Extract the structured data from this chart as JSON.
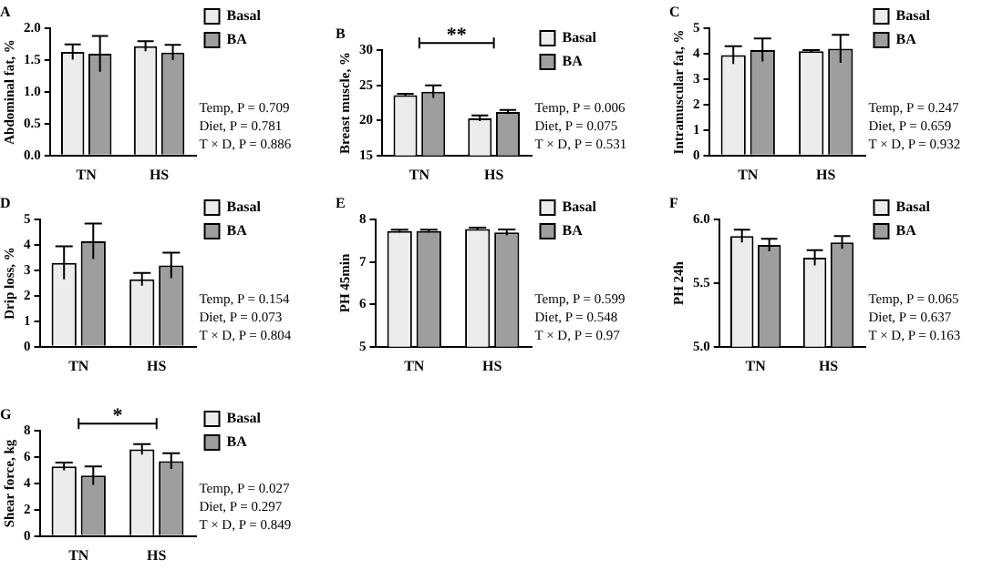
{
  "chart_data": [
    {
      "type": "bar",
      "title": "A",
      "ylabel": "Abdominal fat, %",
      "categories": [
        "TN",
        "HS"
      ],
      "legend": "right",
      "ylim": [
        0,
        2
      ],
      "yticks": [
        {
          "value": 0,
          "label": "0.0"
        },
        {
          "value": 0.5,
          "label": "0.5"
        },
        {
          "value": 1,
          "label": "1.0"
        },
        {
          "value": 1.5,
          "label": "1.5"
        },
        {
          "value": 2,
          "label": "2.0"
        }
      ],
      "series": [
        {
          "name": "Basal",
          "color": "#ececec",
          "values": [
            1.63,
            1.72
          ],
          "errors": [
            0.12,
            0.08
          ]
        },
        {
          "name": "BA",
          "color": "#9e9e9e",
          "values": [
            1.6,
            1.62
          ],
          "errors": [
            0.28,
            0.12
          ]
        }
      ],
      "annotations": [
        "Temp, P = 0.709",
        "Diet, P = 0.781",
        "T × D, P = 0.886"
      ]
    },
    {
      "type": "bar",
      "title": "B",
      "ylabel": "Breast muscle, %",
      "categories": [
        "TN",
        "HS"
      ],
      "legend": "right",
      "ylim": [
        15,
        30
      ],
      "yticks": [
        15,
        20,
        25,
        30
      ],
      "series": [
        {
          "name": "Basal",
          "color": "#ececec",
          "values": [
            23.6,
            20.3
          ],
          "errors": [
            0.2,
            0.4
          ]
        },
        {
          "name": "BA",
          "color": "#9e9e9e",
          "values": [
            24.1,
            21.2
          ],
          "errors": [
            0.9,
            0.3
          ]
        }
      ],
      "annotations": [
        "**",
        "Temp, P = 0.006",
        "Diet, P = 0.075",
        "T × D, P = 0.531"
      ]
    },
    {
      "type": "bar",
      "title": "C",
      "ylabel": "Intramuscular fat, %",
      "categories": [
        "TN",
        "HS"
      ],
      "legend": "right",
      "ylim": [
        0,
        5
      ],
      "yticks": [
        0,
        1,
        2,
        3,
        4,
        5
      ],
      "series": [
        {
          "name": "Basal",
          "color": "#ececec",
          "values": [
            3.95,
            4.1
          ],
          "errors": [
            0.35,
            0.05
          ]
        },
        {
          "name": "BA",
          "color": "#9e9e9e",
          "values": [
            4.15,
            4.2
          ],
          "errors": [
            0.45,
            0.55
          ]
        }
      ],
      "annotations": [
        "Temp, P = 0.247",
        "Diet, P = 0.659",
        "T × D, P = 0.932"
      ]
    },
    {
      "type": "bar",
      "title": "D",
      "ylabel": "Drip loss, %",
      "categories": [
        "TN",
        "HS"
      ],
      "legend": "right",
      "ylim": [
        0,
        5
      ],
      "yticks": [
        0,
        1,
        2,
        3,
        4,
        5
      ],
      "series": [
        {
          "name": "Basal",
          "color": "#ececec",
          "values": [
            3.3,
            2.65
          ],
          "errors": [
            0.65,
            0.25
          ]
        },
        {
          "name": "BA",
          "color": "#9e9e9e",
          "values": [
            4.15,
            3.2
          ],
          "errors": [
            0.7,
            0.5
          ]
        }
      ],
      "annotations": [
        "Temp, P = 0.154",
        "Diet, P = 0.073",
        "T × D, P = 0.804"
      ]
    },
    {
      "type": "bar",
      "title": "E",
      "ylabel": "PH 45min",
      "categories": [
        "TN",
        "HS"
      ],
      "legend": "right",
      "ylim": [
        5,
        8
      ],
      "yticks": [
        5,
        6,
        7,
        8
      ],
      "series": [
        {
          "name": "Basal",
          "color": "#ececec",
          "values": [
            7.73,
            7.78
          ],
          "errors": [
            0.03,
            0.03
          ]
        },
        {
          "name": "BA",
          "color": "#9e9e9e",
          "values": [
            7.73,
            7.7
          ],
          "errors": [
            0.03,
            0.07
          ]
        }
      ],
      "annotations": [
        "Temp, P = 0.599",
        "Diet, P = 0.548",
        "T × D, P = 0.97"
      ]
    },
    {
      "type": "bar",
      "title": "F",
      "ylabel": "PH 24h",
      "categories": [
        "TN",
        "HS"
      ],
      "legend": "right",
      "ylim": [
        5,
        6
      ],
      "yticks": [
        {
          "value": 5,
          "label": "5.0"
        },
        {
          "value": 5.5,
          "label": "5.5"
        },
        {
          "value": 6,
          "label": "6.0"
        }
      ],
      "series": [
        {
          "name": "Basal",
          "color": "#ececec",
          "values": [
            5.87,
            5.7
          ],
          "errors": [
            0.05,
            0.06
          ]
        },
        {
          "name": "BA",
          "color": "#9e9e9e",
          "values": [
            5.8,
            5.82
          ],
          "errors": [
            0.05,
            0.05
          ]
        }
      ],
      "annotations": [
        "Temp, P = 0.065",
        "Diet, P = 0.637",
        "T × D, P = 0.163"
      ]
    },
    {
      "type": "bar",
      "title": "G",
      "ylabel": "Shear force, kg",
      "categories": [
        "TN",
        "HS"
      ],
      "legend": "right",
      "ylim": [
        0,
        8
      ],
      "yticks": [
        0,
        2,
        4,
        6,
        8
      ],
      "series": [
        {
          "name": "Basal",
          "color": "#ececec",
          "values": [
            5.3,
            6.6
          ],
          "errors": [
            0.3,
            0.4
          ]
        },
        {
          "name": "BA",
          "color": "#9e9e9e",
          "values": [
            4.6,
            5.7
          ],
          "errors": [
            0.7,
            0.6
          ]
        }
      ],
      "annotations": [
        "*",
        "Temp, P = 0.027",
        "Diet, P = 0.297",
        "T × D, P = 0.849"
      ]
    }
  ]
}
